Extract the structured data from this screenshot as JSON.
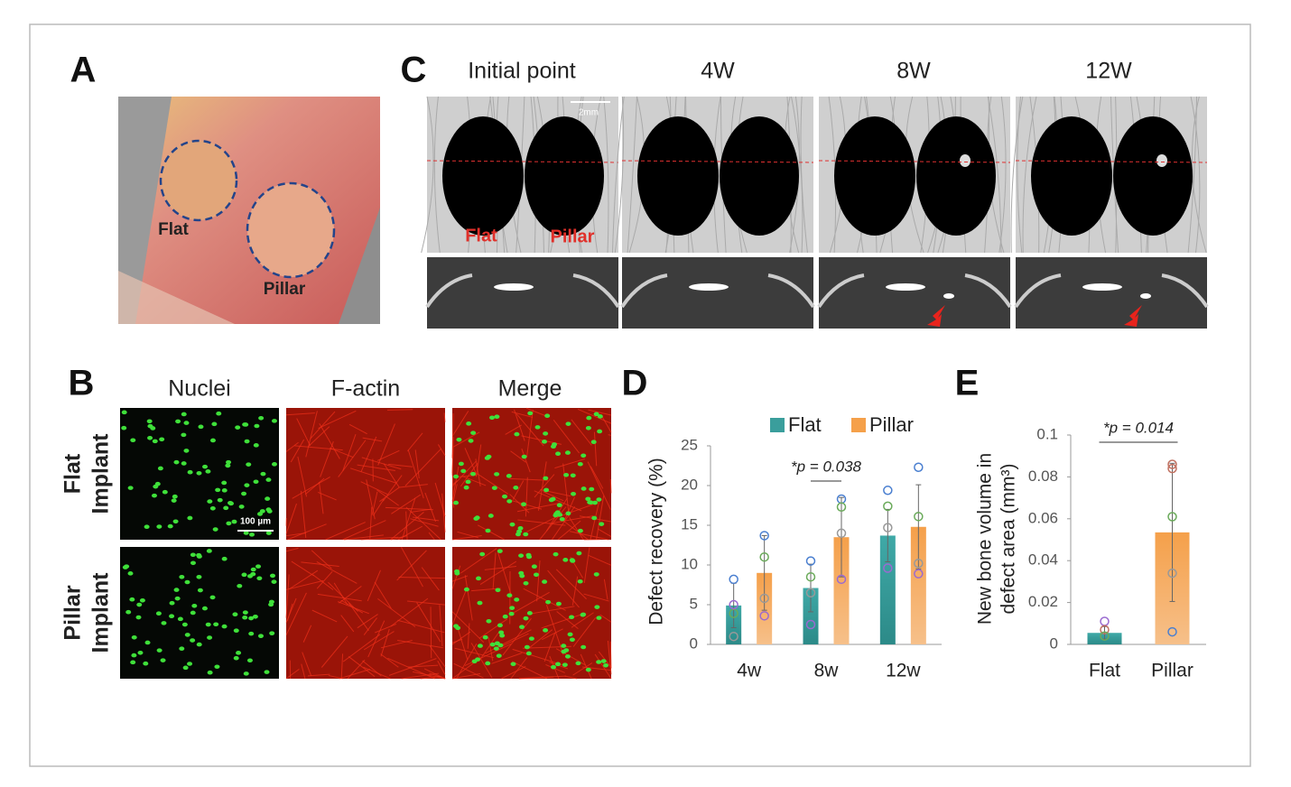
{
  "panels": {
    "A": {
      "label": "A",
      "texts": [
        "Flat",
        "Pillar"
      ]
    },
    "B": {
      "label": "B",
      "columns": [
        "Nuclei",
        "F-actin",
        "Merge"
      ],
      "rows": [
        [
          "Flat",
          "Implant"
        ],
        [
          "Pillar",
          "Implant"
        ]
      ],
      "scale": "100 µm"
    },
    "C": {
      "label": "C",
      "columns": [
        "Initial point",
        "4W",
        "8W",
        "12W"
      ],
      "scale": "2mm",
      "texts": [
        "Flat",
        "Pillar"
      ]
    }
  },
  "chart_data": [
    {
      "type": "bar",
      "panel_label": "D",
      "y_label": [
        "Defect recovery (%)"
      ],
      "categories": [
        "4w",
        "8w",
        "12w"
      ],
      "series": [
        {
          "name": "Flat",
          "color": "#3a9e9c",
          "values": [
            4.9,
            7.1,
            13.7
          ],
          "errors": [
            2.8,
            3.0,
            3.3
          ],
          "points": [
            [
              8.2,
              3.9,
              1.0,
              5.0
            ],
            [
              10.5,
              8.5,
              6.5,
              2.5
            ],
            [
              19.4,
              17.4,
              14.7,
              9.6
            ]
          ]
        },
        {
          "name": "Pillar",
          "color": "#f5a04a",
          "values": [
            9.0,
            13.5,
            14.8
          ],
          "errors": [
            4.7,
            5.0,
            5.3
          ],
          "points": [
            [
              13.7,
              11.0,
              5.8,
              3.6
            ],
            [
              18.3,
              17.3,
              14.0,
              8.2
            ],
            [
              22.3,
              16.1,
              10.2,
              8.9
            ]
          ]
        }
      ],
      "point_colors": [
        "#4a7fd0",
        "#6aaa5a",
        "#999999",
        "#9a6ad0"
      ],
      "ylim": [
        0,
        25
      ],
      "yticks": [
        0,
        5,
        10,
        15,
        20,
        25
      ],
      "legend": "top",
      "annotation": "*p = 0.038",
      "annotation_between": [
        1,
        1
      ]
    },
    {
      "type": "bar",
      "panel_label": "E",
      "y_label": [
        "New bone volume in",
        "defect area (mm³)"
      ],
      "categories": [
        "Flat",
        "Pillar"
      ],
      "values": [
        0.0055,
        0.0535
      ],
      "colors": [
        "#3a9e9c",
        "#f5a04a"
      ],
      "errors": [
        0.003,
        0.033
      ],
      "points": [
        [
          0.011,
          0.007,
          0.004
        ],
        [
          0.086,
          0.084,
          0.061,
          0.034,
          0.006
        ]
      ],
      "point_colors": [
        "#9a6ad0",
        "#c07060",
        "#6aaa5a",
        "#999999",
        "#4a7fd0"
      ],
      "ylim": [
        0,
        0.1
      ],
      "yticks": [
        0,
        0.02,
        0.04,
        0.06,
        0.08,
        0.1
      ],
      "annotation": "*p = 0.014",
      "annotation_between": [
        0,
        1
      ]
    }
  ]
}
